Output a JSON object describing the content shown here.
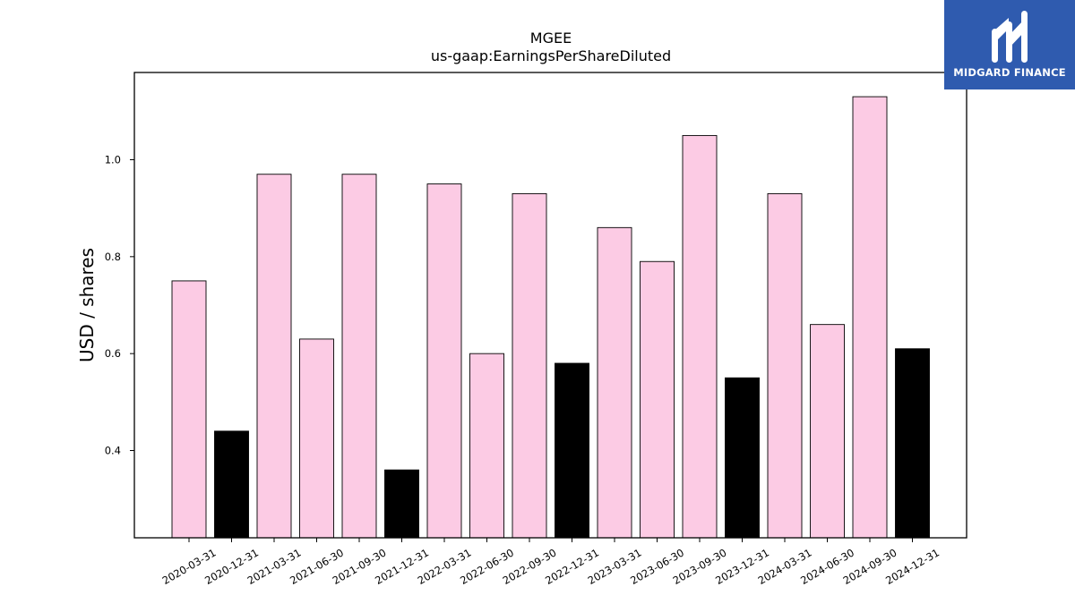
{
  "brand": {
    "name": "MIDGARD FINANCE",
    "bg_color": "#2f5baf",
    "logo_icon": "midgard-m-icon"
  },
  "chart_data": {
    "type": "bar",
    "title": "MGEE",
    "subtitle": "us-gaap:EarningsPerShareDiluted",
    "xlabel": "",
    "ylabel": "USD / shares",
    "ylim": [
      0.22,
      1.18
    ],
    "yticks": [
      0.4,
      0.6,
      0.8,
      1.0
    ],
    "ytick_labels": [
      "0.4",
      "0.6",
      "0.8",
      "1.0"
    ],
    "grid": false,
    "legend": "none",
    "categories": [
      "2020-03-31",
      "2020-12-31",
      "2021-03-31",
      "2021-06-30",
      "2021-09-30",
      "2021-12-31",
      "2022-03-31",
      "2022-06-30",
      "2022-09-30",
      "2022-12-31",
      "2023-03-31",
      "2023-06-30",
      "2023-09-30",
      "2023-12-31",
      "2024-03-31",
      "2024-06-30",
      "2024-09-30",
      "2024-12-31"
    ],
    "values": [
      0.75,
      0.44,
      0.97,
      0.63,
      0.97,
      0.36,
      0.95,
      0.6,
      0.93,
      0.58,
      0.86,
      0.79,
      1.05,
      0.55,
      0.93,
      0.66,
      1.13,
      0.61
    ],
    "bar_colors": [
      "#fccbe4",
      "#000000",
      "#fccbe4",
      "#fccbe4",
      "#fccbe4",
      "#000000",
      "#fccbe4",
      "#fccbe4",
      "#fccbe4",
      "#000000",
      "#fccbe4",
      "#fccbe4",
      "#fccbe4",
      "#000000",
      "#fccbe4",
      "#fccbe4",
      "#fccbe4",
      "#000000"
    ]
  }
}
